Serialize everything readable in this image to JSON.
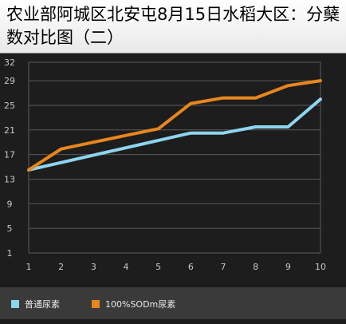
{
  "title": "农业部阿城区北安屯8月15日水稻大区：分蘖数对比图（二）",
  "colors": {
    "series_1": "#8ed5ef",
    "series_2": "#e8861e",
    "grid": "#5a5a5a",
    "background": "#1d1d1d"
  },
  "chart_data": {
    "type": "line",
    "title": "农业部阿城区北安屯8月15日水稻大区：分蘖数对比图（二）",
    "x": [
      1,
      2,
      3,
      4,
      5,
      6,
      7,
      8,
      9,
      10
    ],
    "x_tick_labels": [
      "1",
      "2",
      "3",
      "4",
      "5",
      "6",
      "7",
      "8",
      "9",
      "10"
    ],
    "y_tick_labels": [
      "32",
      "29",
      "25",
      "21",
      "17",
      "13",
      "9",
      "5",
      "1"
    ],
    "y_ticks": [
      32,
      29,
      25,
      21,
      17,
      13,
      9,
      5,
      1
    ],
    "ylim": [
      1,
      32
    ],
    "xlim": [
      1,
      10
    ],
    "grid": true,
    "legend_position": "bottom",
    "series": [
      {
        "name": "普通尿素",
        "color": "#8ed5ef",
        "values": [
          14.5,
          15.7,
          16.9,
          18.1,
          19.3,
          20.5,
          20.5,
          21.5,
          21.5,
          26.0
        ]
      },
      {
        "name": "100%SODm尿素",
        "color": "#e8861e",
        "values": [
          14.5,
          17.9,
          19.0,
          20.1,
          21.2,
          25.3,
          26.2,
          26.2,
          28.2,
          29.0
        ]
      }
    ]
  }
}
